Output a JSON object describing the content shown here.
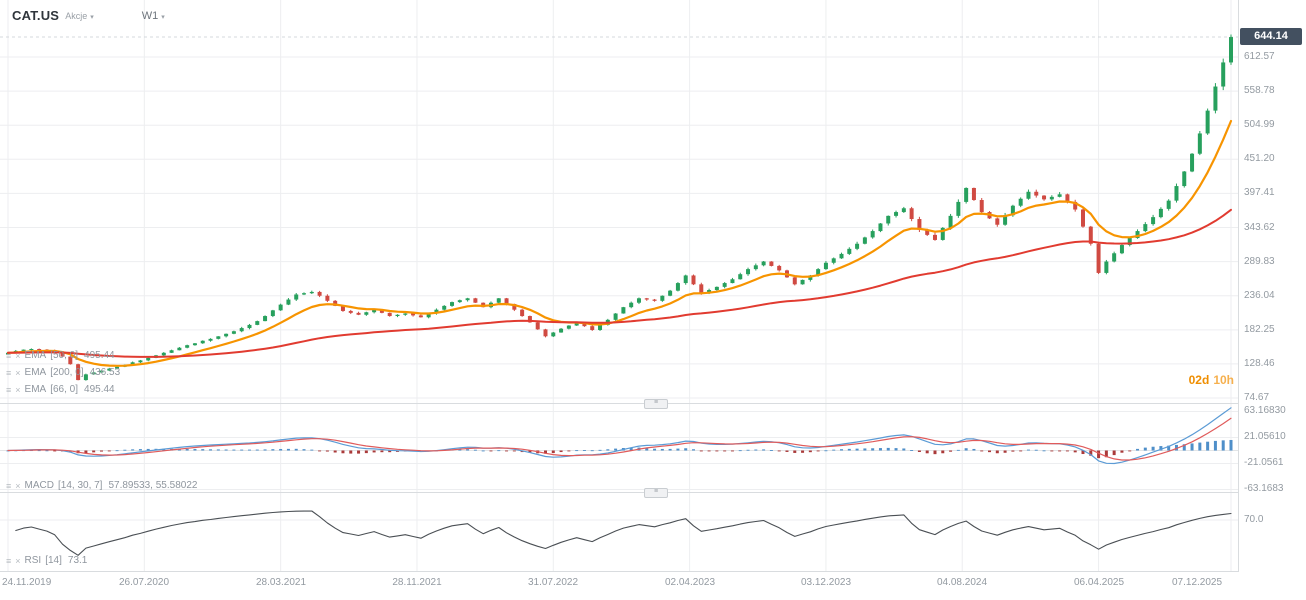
{
  "header": {
    "symbol": "CAT.US",
    "market_label": "Akcje",
    "timeframe": "W1"
  },
  "price_axis": {
    "current_price": "644.14",
    "ticks": [
      "612.57",
      "558.78",
      "504.99",
      "451.20",
      "397.41",
      "343.62",
      "289.83",
      "236.04",
      "182.25",
      "128.46",
      "74.67"
    ]
  },
  "macd_axis": {
    "ticks": [
      "63.16830",
      "21.05610",
      "-21.0561",
      "-63.1683"
    ]
  },
  "rsi_axis": {
    "ticks": [
      "70.0"
    ]
  },
  "time_axis": {
    "labels": [
      "24.11.2019",
      "26.07.2020",
      "28.03.2021",
      "28.11.2021",
      "31.07.2022",
      "02.04.2023",
      "03.12.2023",
      "04.08.2024",
      "06.04.2025",
      "07.12.2025"
    ]
  },
  "countdown": {
    "days": "02d",
    "hours": "10h"
  },
  "indicators": {
    "ema": [
      {
        "name": "EMA",
        "params": "[50, 0]",
        "value": "495.44"
      },
      {
        "name": "EMA",
        "params": "[200, 0]",
        "value": "436.53"
      },
      {
        "name": "EMA",
        "params": "[66, 0]",
        "value": "495.44"
      }
    ],
    "macd": {
      "name": "MACD",
      "params": "[14, 30, 7]",
      "values": "57.89533,  55.58022"
    },
    "rsi": {
      "name": "RSI",
      "params": "[14]",
      "value": "73.1"
    }
  },
  "colors": {
    "up": "#27a05d",
    "down": "#d04a42",
    "ema_fast": "#f79400",
    "ema_slow": "#e13b30",
    "macd_line": "#5b9bd5",
    "macd_signal": "#e05b5b",
    "hist_pos": "#4f8fc9",
    "hist_neg": "#aa3a3a",
    "rsi_line": "#4a4f54",
    "badge": "#435060",
    "countdown": "#ef8e00"
  },
  "chart_data": {
    "type": "candlestick",
    "symbol": "CAT.US",
    "timeframe": "W1",
    "instrument_type": "Akcje",
    "time_labels": [
      "24.11.2019",
      "26.07.2020",
      "28.03.2021",
      "28.11.2021",
      "31.07.2022",
      "02.04.2023",
      "03.12.2023",
      "04.08.2024",
      "06.04.2025",
      "07.12.2025"
    ],
    "price_gridlines": [
      74.67,
      128.46,
      182.25,
      236.04,
      289.83,
      343.62,
      397.41,
      451.2,
      504.99,
      558.78,
      612.57
    ],
    "current_price": 644.14,
    "candle_time_remaining": "02d 10h",
    "closes": [
      146,
      149,
      151,
      152,
      151,
      150,
      148,
      140,
      128,
      103,
      112,
      115,
      118,
      121,
      124,
      127,
      131,
      134,
      138,
      142,
      146,
      150,
      154,
      158,
      161,
      165,
      168,
      172,
      176,
      180,
      185,
      190,
      196,
      204,
      213,
      222,
      230,
      238,
      240,
      242,
      236,
      228,
      220,
      212,
      209,
      206,
      210,
      214,
      209,
      204,
      206,
      208,
      205,
      202,
      208,
      214,
      220,
      226,
      229,
      232,
      225,
      218,
      225,
      232,
      223,
      214,
      204,
      194,
      183,
      172,
      178,
      184,
      189,
      194,
      188,
      182,
      190,
      198,
      208,
      218,
      225,
      232,
      230,
      228,
      236,
      244,
      256,
      268,
      254,
      240,
      245,
      250,
      256,
      262,
      270,
      278,
      284,
      290,
      283,
      276,
      265,
      254,
      261,
      268,
      278,
      288,
      295,
      302,
      310,
      318,
      328,
      338,
      350,
      362,
      368,
      374,
      357,
      340,
      332,
      324,
      343,
      362,
      384,
      406,
      387,
      368,
      358,
      348,
      363,
      378,
      389,
      400,
      394,
      388,
      392,
      396,
      384,
      372,
      345,
      318,
      272,
      290,
      303,
      316,
      327,
      338,
      349,
      360,
      373,
      386,
      409,
      432,
      460,
      492,
      528,
      566,
      604,
      644
    ],
    "overlays": [
      {
        "type": "EMA",
        "params": [
          50,
          0
        ],
        "last_value": 495.44
      },
      {
        "type": "EMA",
        "params": [
          200,
          0
        ],
        "last_value": 436.53
      },
      {
        "type": "EMA",
        "params": [
          66,
          0
        ],
        "last_value": 495.44
      }
    ],
    "macd": {
      "params": [
        14,
        30,
        7
      ],
      "last_values": [
        57.89533,
        55.58022
      ],
      "axis_ticks": [
        63.1683,
        21.0561,
        -21.0561,
        -63.1683
      ]
    },
    "rsi": {
      "params": [
        14
      ],
      "last_value": 73.1,
      "level": 70.0
    }
  }
}
